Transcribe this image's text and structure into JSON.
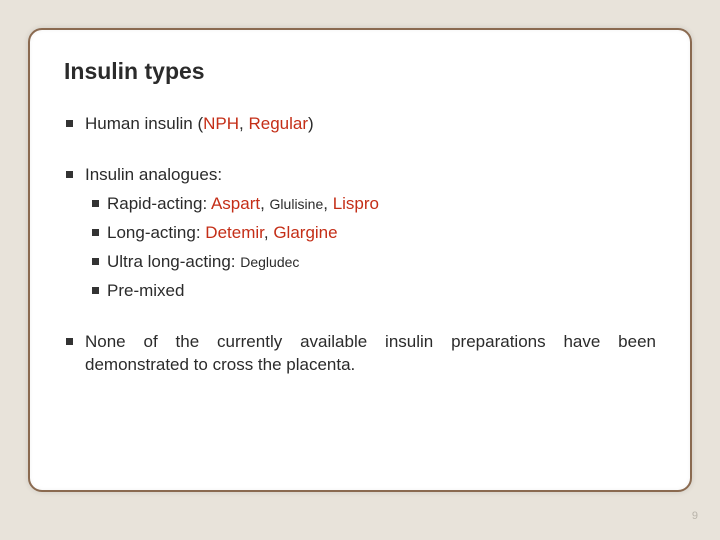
{
  "colors": {
    "page_bg": "#e8e3da",
    "card_bg": "#ffffff",
    "card_border": "#8a6a50",
    "text": "#2b2b2b",
    "accent_red": "#c42e17",
    "bullet": "#333333",
    "pagenum": "#b9b4aa"
  },
  "title": "Insulin types",
  "b1_pre": "Human insulin (",
  "b1_nph": "NPH",
  "b1_sep": ", ",
  "b1_reg": "Regular",
  "b1_post": ")",
  "b2": "Insulin analogues:",
  "b2a_pre": "Rapid-acting: ",
  "b2a_aspart": "Aspart",
  "b2a_c1": ", ",
  "b2a_glu": "Glulisine",
  "b2a_c2": ", ",
  "b2a_lispro": "Lispro",
  "b2b_pre": "Long-acting: ",
  "b2b_det": "Detemir",
  "b2b_c": ", ",
  "b2b_gla": "Glargine",
  "b2c_pre": "Ultra long-acting: ",
  "b2c_deg": "Degludec",
  "b2d": "Pre-mixed",
  "b3": "None of the currently available insulin preparations have been demonstrated to cross the placenta.",
  "page_number": "9"
}
